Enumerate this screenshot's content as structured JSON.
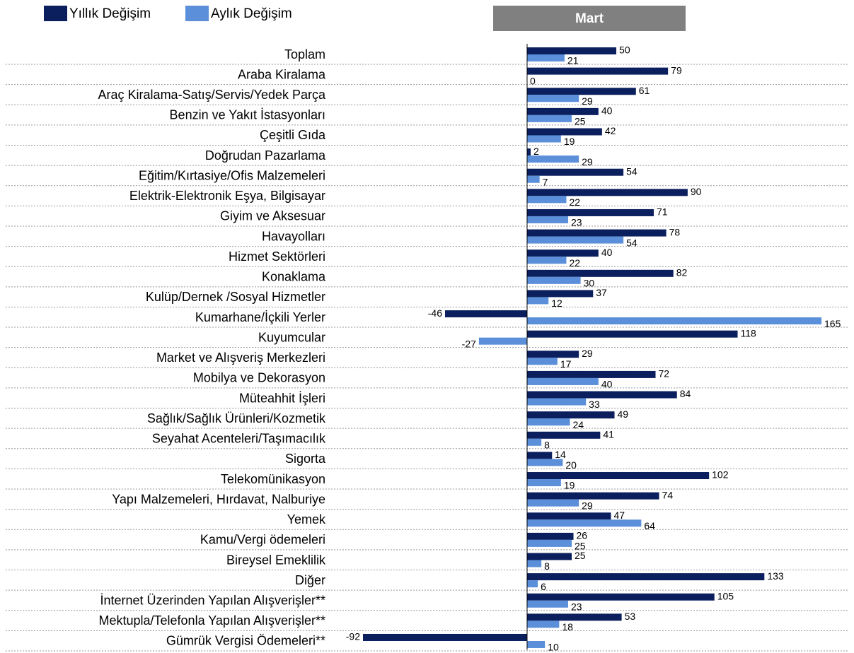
{
  "chart_data": {
    "type": "hbar",
    "header": "Mart",
    "categories": [
      "Toplam",
      "Araba Kiralama",
      "Araç Kiralama-Satış/Servis/Yedek Parça",
      "Benzin ve Yakıt İstasyonları",
      "Çeşitli Gıda",
      "Doğrudan Pazarlama",
      "Eğitim/Kırtasiye/Ofis Malzemeleri",
      "Elektrik-Elektronik Eşya, Bilgisayar",
      "Giyim ve Aksesuar",
      "Havayolları",
      "Hizmet Sektörleri",
      "Konaklama",
      "Kulüp/Dernek /Sosyal Hizmetler",
      "Kumarhane/İçkili Yerler",
      "Kuyumcular",
      "Market ve Alışveriş Merkezleri",
      "Mobilya ve Dekorasyon",
      "Müteahhit İşleri",
      "Sağlık/Sağlık Ürünleri/Kozmetik",
      "Seyahat Acenteleri/Taşımacılık",
      "Sigorta",
      "Telekomünikasyon",
      "Yapı Malzemeleri, Hırdavat, Nalburiye",
      "Yemek",
      "Kamu/Vergi ödemeleri",
      "Bireysel Emeklilik",
      "Diğer",
      "İnternet Üzerinden Yapılan Alışverişler**",
      "Mektupla/Telefonla Yapılan Alışverişler**",
      "Gümrük Vergisi Ödemeleri**"
    ],
    "series": [
      {
        "name": "Yıllık Değişim",
        "color": "#0b1f5e",
        "values": [
          50,
          79,
          61,
          40,
          42,
          2,
          54,
          90,
          71,
          78,
          40,
          82,
          37,
          -46,
          118,
          29,
          72,
          84,
          49,
          41,
          14,
          102,
          74,
          47,
          26,
          25,
          133,
          105,
          53,
          -92
        ]
      },
      {
        "name": "Aylık Değişim",
        "color": "#5b8fd9",
        "values": [
          21,
          0,
          29,
          25,
          19,
          29,
          7,
          22,
          23,
          54,
          22,
          30,
          12,
          165,
          -27,
          17,
          40,
          33,
          24,
          8,
          20,
          19,
          29,
          64,
          25,
          8,
          6,
          23,
          18,
          10
        ]
      }
    ]
  }
}
